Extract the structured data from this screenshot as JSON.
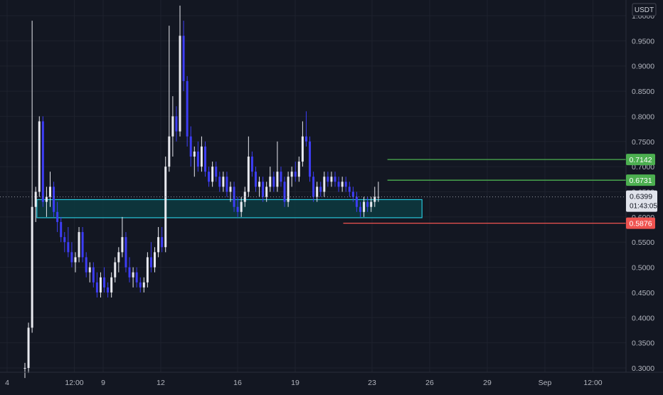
{
  "theme": {
    "background": "#131722",
    "grid": "#1e222d",
    "axis_text": "#b2b5be",
    "bull": "#e9eaf0",
    "bear": "#3d3df5",
    "zone_stroke": "#26c6da",
    "zone_fill": "#0d3a3f",
    "target_line": "#4caf50",
    "stop_line": "#ef5350",
    "price_line": "#9598a1",
    "price_tag_bg": "#e0e3eb"
  },
  "chart_data": {
    "type": "candlestick",
    "title": "",
    "currency_label": "USDT",
    "y_range": [
      0.29,
      1.02
    ],
    "y_ticks": [
      "1.0000",
      "0.9500",
      "0.9000",
      "0.8500",
      "0.8000",
      "0.7500",
      "0.7000",
      "0.6500",
      "0.6000",
      "0.5500",
      "0.5000",
      "0.4500",
      "0.4000",
      "0.3500",
      "0.3000"
    ],
    "x_ticks": [
      {
        "label": "4",
        "day": 4.0
      },
      {
        "label": "12:00",
        "day": 7.5
      },
      {
        "label": "9",
        "day": 9.0
      },
      {
        "label": "12",
        "day": 12.0
      },
      {
        "label": "16",
        "day": 16.0
      },
      {
        "label": "19",
        "day": 19.0
      },
      {
        "label": "23",
        "day": 23.0
      },
      {
        "label": "26",
        "day": 26.0
      },
      {
        "label": "29",
        "day": 29.0
      },
      {
        "label": "Sep",
        "day": 32.0
      },
      {
        "label": "12:00",
        "day": 34.5
      }
    ],
    "levels": [
      {
        "name": "target-2",
        "value": 0.7142,
        "label": "0.7142",
        "color": "#4caf50",
        "from_day": 23.8
      },
      {
        "name": "target-1",
        "value": 0.6731,
        "label": "0.6731",
        "color": "#4caf50",
        "from_day": 23.8
      },
      {
        "name": "stop",
        "value": 0.5876,
        "label": "0.5876",
        "color": "#ef5350",
        "from_day": 21.5
      }
    ],
    "last_price": {
      "value": 0.6399,
      "label": "0.6399",
      "countdown": "01:43:05"
    },
    "zone": {
      "top": 0.6345,
      "bottom": 0.5985,
      "from_day": 5.55,
      "to_day": 25.6
    },
    "candles": [
      [
        0.3,
        0.31,
        0.28,
        0.3
      ],
      [
        0.3,
        0.39,
        0.29,
        0.38
      ],
      [
        0.38,
        0.99,
        0.37,
        0.62
      ],
      [
        0.62,
        0.66,
        0.59,
        0.65
      ],
      [
        0.65,
        0.8,
        0.64,
        0.79
      ],
      [
        0.79,
        0.8,
        0.62,
        0.63
      ],
      [
        0.63,
        0.66,
        0.6,
        0.64
      ],
      [
        0.64,
        0.69,
        0.62,
        0.66
      ],
      [
        0.66,
        0.67,
        0.6,
        0.61
      ],
      [
        0.61,
        0.63,
        0.57,
        0.59
      ],
      [
        0.59,
        0.6,
        0.55,
        0.56
      ],
      [
        0.56,
        0.57,
        0.53,
        0.55
      ],
      [
        0.55,
        0.58,
        0.52,
        0.53
      ],
      [
        0.53,
        0.55,
        0.5,
        0.51
      ],
      [
        0.51,
        0.53,
        0.49,
        0.52
      ],
      [
        0.52,
        0.58,
        0.51,
        0.57
      ],
      [
        0.57,
        0.58,
        0.51,
        0.52
      ],
      [
        0.52,
        0.53,
        0.48,
        0.49
      ],
      [
        0.49,
        0.51,
        0.47,
        0.5
      ],
      [
        0.5,
        0.51,
        0.46,
        0.47
      ],
      [
        0.47,
        0.49,
        0.44,
        0.45
      ],
      [
        0.45,
        0.49,
        0.44,
        0.48
      ],
      [
        0.48,
        0.5,
        0.45,
        0.46
      ],
      [
        0.46,
        0.47,
        0.44,
        0.45
      ],
      [
        0.45,
        0.49,
        0.44,
        0.48
      ],
      [
        0.48,
        0.52,
        0.47,
        0.51
      ],
      [
        0.51,
        0.54,
        0.49,
        0.53
      ],
      [
        0.53,
        0.6,
        0.52,
        0.56
      ],
      [
        0.56,
        0.57,
        0.49,
        0.5
      ],
      [
        0.5,
        0.52,
        0.47,
        0.48
      ],
      [
        0.48,
        0.5,
        0.46,
        0.49
      ],
      [
        0.49,
        0.5,
        0.46,
        0.47
      ],
      [
        0.47,
        0.48,
        0.45,
        0.46
      ],
      [
        0.46,
        0.48,
        0.45,
        0.47
      ],
      [
        0.47,
        0.53,
        0.46,
        0.52
      ],
      [
        0.52,
        0.55,
        0.49,
        0.5
      ],
      [
        0.5,
        0.54,
        0.49,
        0.53
      ],
      [
        0.53,
        0.58,
        0.52,
        0.56
      ],
      [
        0.56,
        0.58,
        0.53,
        0.54
      ],
      [
        0.54,
        0.72,
        0.53,
        0.7
      ],
      [
        0.7,
        0.98,
        0.69,
        0.76
      ],
      [
        0.76,
        0.84,
        0.72,
        0.8
      ],
      [
        0.8,
        0.82,
        0.75,
        0.77
      ],
      [
        0.77,
        1.02,
        0.76,
        0.96
      ],
      [
        0.96,
        0.99,
        0.85,
        0.87
      ],
      [
        0.87,
        0.88,
        0.74,
        0.76
      ],
      [
        0.76,
        0.78,
        0.7,
        0.72
      ],
      [
        0.72,
        0.74,
        0.68,
        0.73
      ],
      [
        0.73,
        0.75,
        0.69,
        0.7
      ],
      [
        0.7,
        0.76,
        0.69,
        0.74
      ],
      [
        0.74,
        0.75,
        0.68,
        0.69
      ],
      [
        0.69,
        0.7,
        0.66,
        0.67
      ],
      [
        0.67,
        0.71,
        0.66,
        0.7
      ],
      [
        0.7,
        0.71,
        0.67,
        0.68
      ],
      [
        0.68,
        0.69,
        0.65,
        0.66
      ],
      [
        0.66,
        0.69,
        0.65,
        0.68
      ],
      [
        0.68,
        0.69,
        0.64,
        0.65
      ],
      [
        0.65,
        0.67,
        0.63,
        0.66
      ],
      [
        0.66,
        0.67,
        0.61,
        0.62
      ],
      [
        0.62,
        0.64,
        0.6,
        0.61
      ],
      [
        0.61,
        0.64,
        0.6,
        0.63
      ],
      [
        0.63,
        0.66,
        0.62,
        0.65
      ],
      [
        0.65,
        0.76,
        0.64,
        0.72
      ],
      [
        0.72,
        0.73,
        0.68,
        0.69
      ],
      [
        0.69,
        0.7,
        0.65,
        0.66
      ],
      [
        0.66,
        0.68,
        0.64,
        0.67
      ],
      [
        0.67,
        0.68,
        0.63,
        0.64
      ],
      [
        0.64,
        0.67,
        0.63,
        0.66
      ],
      [
        0.66,
        0.7,
        0.65,
        0.68
      ],
      [
        0.68,
        0.69,
        0.65,
        0.66
      ],
      [
        0.66,
        0.75,
        0.65,
        0.69
      ],
      [
        0.69,
        0.7,
        0.66,
        0.67
      ],
      [
        0.67,
        0.68,
        0.62,
        0.63
      ],
      [
        0.63,
        0.69,
        0.62,
        0.68
      ],
      [
        0.68,
        0.7,
        0.66,
        0.69
      ],
      [
        0.69,
        0.71,
        0.67,
        0.68
      ],
      [
        0.68,
        0.72,
        0.67,
        0.71
      ],
      [
        0.71,
        0.79,
        0.7,
        0.76
      ],
      [
        0.76,
        0.81,
        0.74,
        0.75
      ],
      [
        0.75,
        0.76,
        0.67,
        0.68
      ],
      [
        0.68,
        0.69,
        0.63,
        0.64
      ],
      [
        0.64,
        0.67,
        0.63,
        0.66
      ],
      [
        0.66,
        0.67,
        0.64,
        0.65
      ],
      [
        0.65,
        0.69,
        0.64,
        0.68
      ],
      [
        0.68,
        0.69,
        0.66,
        0.67
      ],
      [
        0.67,
        0.69,
        0.66,
        0.68
      ],
      [
        0.68,
        0.69,
        0.66,
        0.67
      ],
      [
        0.67,
        0.68,
        0.65,
        0.66
      ],
      [
        0.66,
        0.68,
        0.65,
        0.67
      ],
      [
        0.67,
        0.68,
        0.65,
        0.66
      ],
      [
        0.66,
        0.67,
        0.64,
        0.65
      ],
      [
        0.65,
        0.66,
        0.63,
        0.64
      ],
      [
        0.64,
        0.65,
        0.61,
        0.62
      ],
      [
        0.62,
        0.63,
        0.6,
        0.61
      ],
      [
        0.61,
        0.64,
        0.6,
        0.63
      ],
      [
        0.63,
        0.64,
        0.61,
        0.62
      ],
      [
        0.62,
        0.64,
        0.61,
        0.63
      ],
      [
        0.63,
        0.66,
        0.62,
        0.64
      ],
      [
        0.64,
        0.67,
        0.63,
        0.64
      ]
    ]
  }
}
